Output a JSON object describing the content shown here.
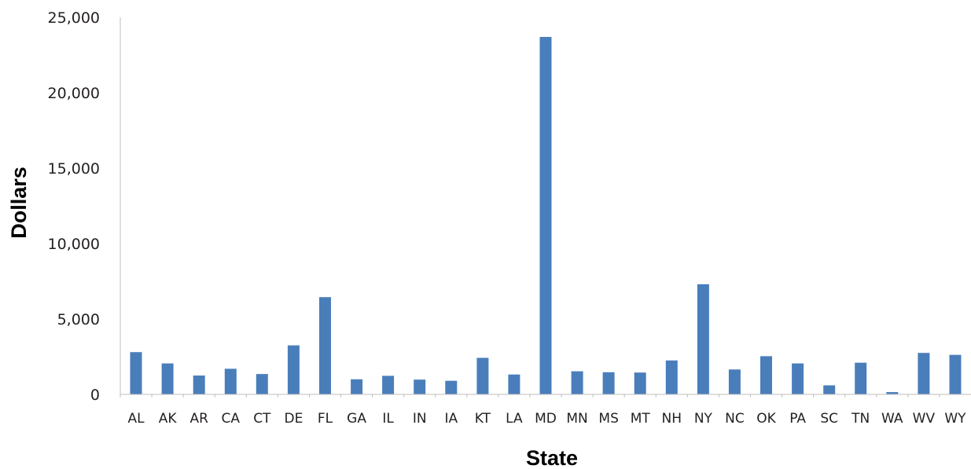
{
  "chart_data": {
    "type": "bar",
    "title": "",
    "xlabel": "State",
    "ylabel": "Dollars",
    "categories": [
      "AL",
      "AK",
      "AR",
      "CA",
      "CT",
      "DE",
      "FL",
      "GA",
      "IL",
      "IN",
      "IA",
      "KT",
      "LA",
      "MD",
      "MN",
      "MS",
      "MT",
      "NH",
      "NY",
      "NC",
      "OK",
      "PA",
      "SC",
      "TN",
      "WA",
      "WV",
      "WY"
    ],
    "values": [
      2800,
      2050,
      1250,
      1700,
      1350,
      3250,
      6450,
      1000,
      1230,
      980,
      900,
      2420,
      1320,
      23700,
      1530,
      1470,
      1450,
      2250,
      7300,
      1650,
      2530,
      2050,
      600,
      2100,
      150,
      2750,
      2620
    ],
    "ylim": [
      0,
      25000
    ],
    "yticks": [
      0,
      5000,
      10000,
      15000,
      20000,
      25000
    ],
    "ytick_labels": [
      "0",
      "5,000",
      "10,000",
      "15,000",
      "20,000",
      "25,000"
    ],
    "bar_color": "#4a7ebb",
    "grid": false,
    "legend": "none"
  }
}
